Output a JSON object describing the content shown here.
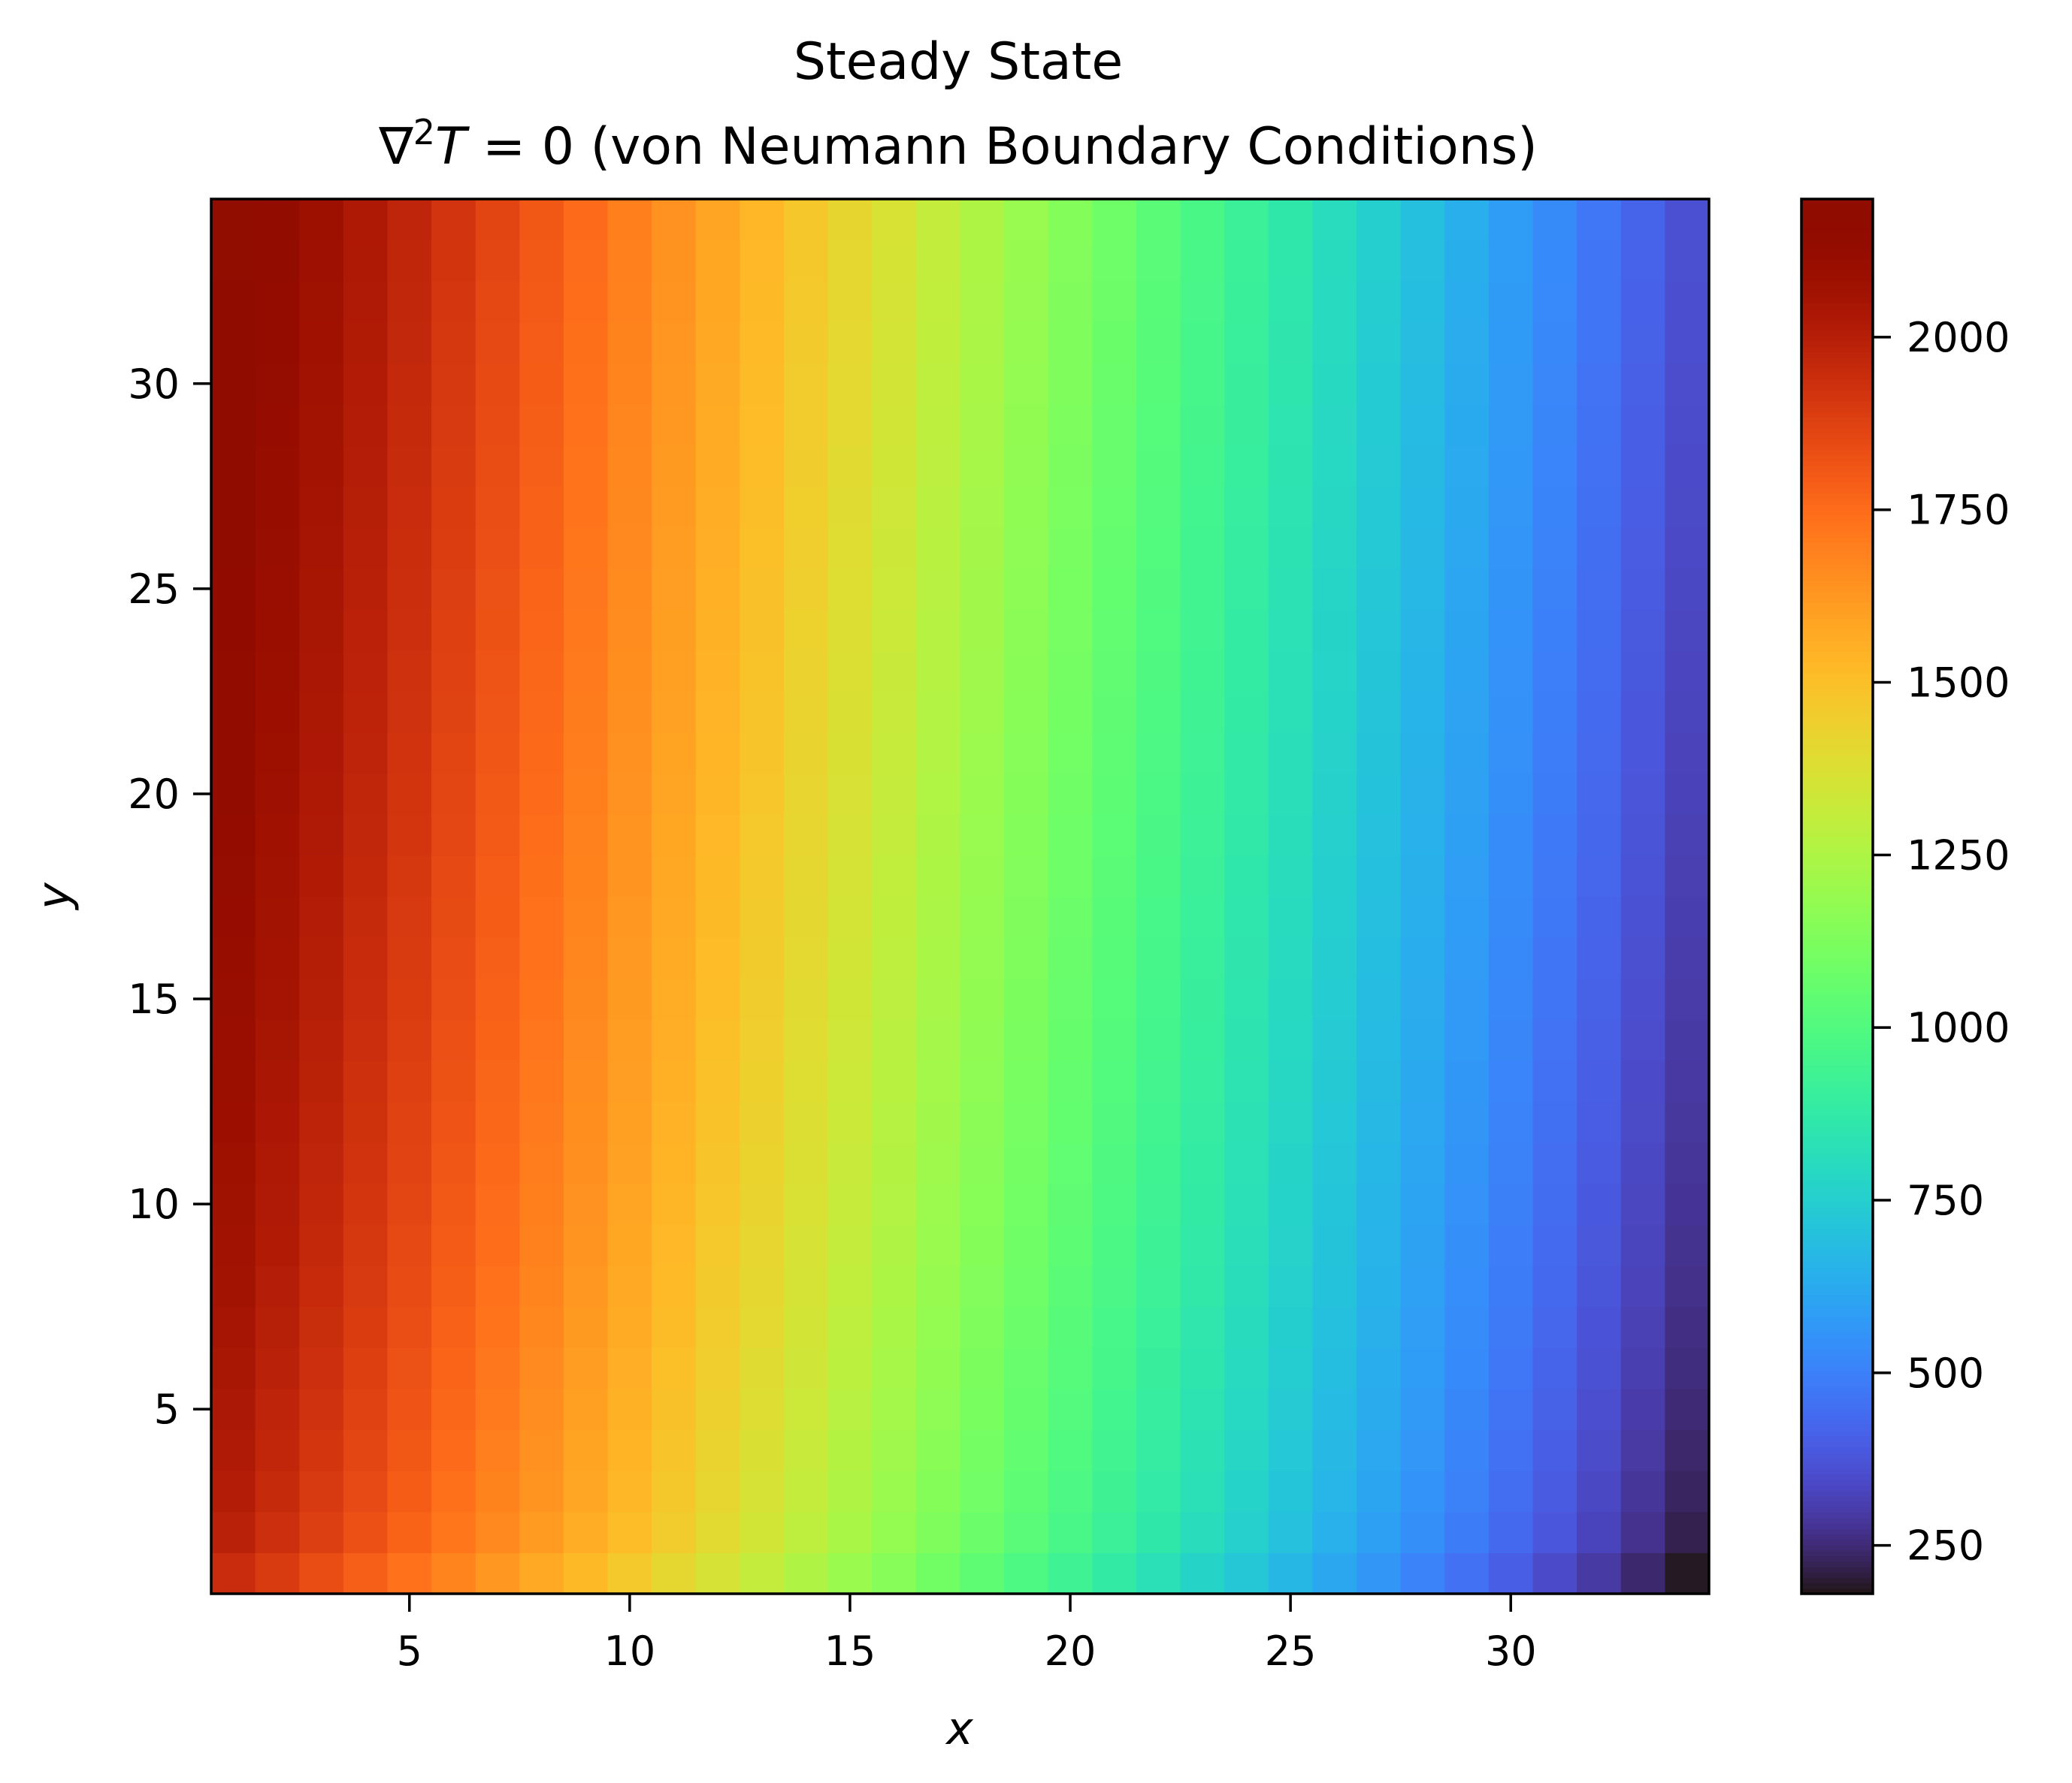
{
  "chart_data": {
    "type": "heatmap",
    "title": "Steady State",
    "subtitle_prefix": "∇",
    "subtitle_sup": "2",
    "subtitle_var": "T",
    "subtitle_rest": " = 0 (von Neumann Boundary Conditions)",
    "xlabel": "x",
    "ylabel": "y",
    "xlim": [
      0.5,
      34.5
    ],
    "ylim": [
      0.5,
      34.5
    ],
    "xticks": [
      5,
      10,
      15,
      20,
      25,
      30
    ],
    "yticks": [
      5,
      10,
      15,
      20,
      25,
      30
    ],
    "grid": false,
    "colormap": "turbo",
    "colorbar": {
      "vmin": 180,
      "vmax": 2200,
      "ticks": [
        250,
        500,
        750,
        1000,
        1250,
        1500,
        1750,
        2000
      ]
    },
    "grid_size": [
      34,
      34
    ],
    "field": {
      "description": "temperature T(x,y)",
      "left_top": 2200,
      "left_bottom": 1950,
      "right_top": 360,
      "right_bottom": 185
    }
  }
}
